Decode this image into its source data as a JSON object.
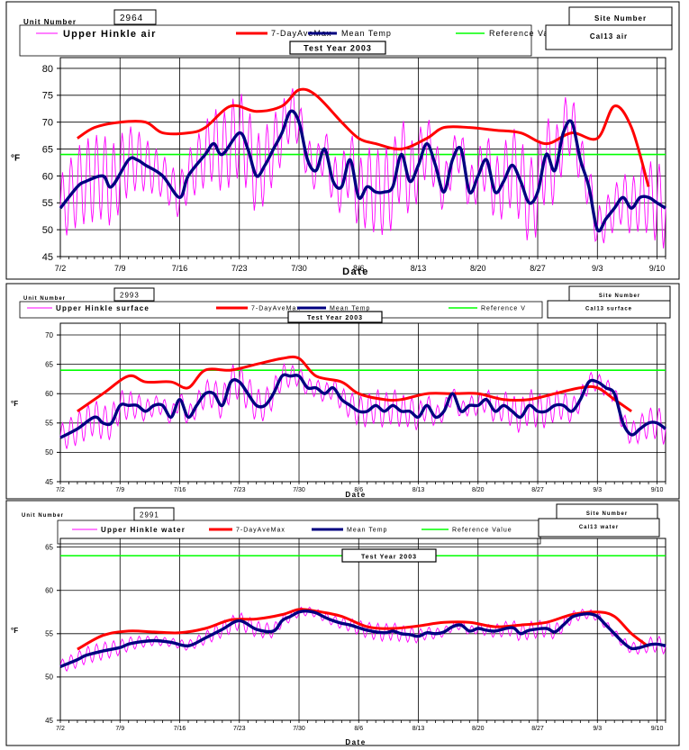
{
  "chart_data": [
    {
      "type": "line",
      "unit_number_label": "Unit Number",
      "unit_number": "2964",
      "site_number_label": "Site Number",
      "site_number": "Cal13 air",
      "title": "Test Year 2003",
      "xlabel": "Date",
      "ylabel": "°F",
      "ylim": [
        45,
        82
      ],
      "yticks": [
        45,
        50,
        55,
        60,
        65,
        70,
        75,
        80
      ],
      "xlim": [
        0,
        71
      ],
      "x_tick_labels": [
        "7/2",
        "7/9",
        "7/16",
        "7/23",
        "7/30",
        "8/6",
        "8/13",
        "8/20",
        "8/27",
        "9/3",
        "9/10"
      ],
      "grid": true,
      "legend": "top",
      "legend_labels": [
        "Upper Hinkle  air",
        "7-DayAveMax",
        "Mean Temp",
        "Reference Va"
      ],
      "colors": {
        "raw": "#ff00ff",
        "max7": "#ff0000",
        "mean": "#000080",
        "ref": "#00ff00"
      },
      "reference_value": 64,
      "raw_amplitude": 8,
      "max7": {
        "x": [
          2,
          4,
          7,
          10,
          12,
          15,
          17,
          20,
          23,
          26,
          28,
          30,
          33,
          35,
          37,
          40,
          43,
          45,
          48,
          51,
          54,
          57,
          60,
          63,
          65,
          67,
          69
        ],
        "y": [
          67,
          69,
          70,
          70,
          68,
          68,
          69,
          73,
          72,
          73,
          76,
          75,
          70,
          67,
          66,
          65,
          67,
          69,
          69,
          68.5,
          68,
          66,
          68,
          67,
          73,
          69,
          58
        ]
      },
      "mean": {
        "x": [
          0,
          2,
          3,
          5,
          6,
          8,
          9,
          10,
          12,
          14,
          15,
          17,
          18,
          19,
          21,
          22,
          23,
          24,
          25,
          26,
          27,
          28,
          29,
          30,
          31,
          32,
          33,
          34,
          35,
          36,
          37,
          38,
          39,
          40,
          41,
          42,
          43,
          44,
          45,
          46,
          47,
          48,
          49,
          50,
          51,
          52,
          53,
          54,
          55,
          56,
          57,
          58,
          59,
          60,
          61,
          62,
          63,
          64,
          65,
          66,
          67,
          68,
          69,
          70,
          71
        ],
        "y": [
          54,
          58,
          59,
          60,
          58,
          63,
          63,
          62,
          60,
          56,
          60,
          64,
          66,
          64,
          68,
          65,
          60,
          62,
          65,
          68,
          72,
          70,
          63,
          61,
          65,
          59,
          58,
          63,
          56,
          58,
          57,
          57,
          58,
          64,
          59,
          62,
          66,
          62,
          57,
          63,
          65,
          57,
          60,
          63,
          57,
          59,
          62,
          59,
          55,
          57,
          64,
          61,
          68,
          70,
          63,
          58,
          50,
          52,
          54,
          56,
          54,
          56,
          56,
          55,
          54
        ]
      }
    },
    {
      "type": "line",
      "unit_number_label": "Unit Number",
      "unit_number": "2993",
      "site_number_label": "Site Number",
      "site_number": "Cal13 surface",
      "title": "Test Year 2003",
      "xlabel": "Date",
      "ylabel": "°F",
      "ylim": [
        45,
        72
      ],
      "yticks": [
        45,
        50,
        55,
        60,
        65,
        70
      ],
      "xlim": [
        0,
        71
      ],
      "x_tick_labels": [
        "7/2",
        "7/9",
        "7/16",
        "7/23",
        "7/30",
        "8/6",
        "8/13",
        "8/20",
        "8/27",
        "9/3",
        "9/10"
      ],
      "grid": true,
      "legend": "top",
      "legend_labels": [
        "Upper Hinkle  surface",
        "7-DayAveMax",
        "Mean Temp",
        "Reference V"
      ],
      "colors": {
        "raw": "#ff00ff",
        "max7": "#ff0000",
        "mean": "#000080",
        "ref": "#00ff00"
      },
      "reference_value": 64,
      "raw_amplitude": 3,
      "max7": {
        "x": [
          2,
          5,
          8,
          10,
          13,
          15,
          17,
          20,
          23,
          26,
          28,
          30,
          33,
          35,
          38,
          40,
          43,
          46,
          49,
          52,
          55,
          58,
          61,
          63,
          65,
          67
        ],
        "y": [
          57,
          60,
          63,
          62,
          62,
          61,
          64,
          64,
          65,
          66,
          66,
          63,
          62,
          60,
          59,
          59,
          60,
          60,
          60,
          59,
          59,
          60,
          61,
          61,
          59,
          57
        ]
      },
      "mean": {
        "x": [
          0,
          2,
          4,
          5,
          6,
          7,
          8,
          9,
          10,
          11,
          12,
          13,
          14,
          15,
          16,
          17,
          18,
          19,
          20,
          21,
          22,
          23,
          24,
          25,
          26,
          27,
          28,
          29,
          30,
          31,
          32,
          33,
          34,
          35,
          36,
          37,
          38,
          39,
          40,
          41,
          42,
          43,
          44,
          45,
          46,
          47,
          48,
          49,
          50,
          51,
          52,
          53,
          54,
          55,
          56,
          57,
          58,
          59,
          60,
          61,
          62,
          63,
          64,
          65,
          66,
          67,
          68,
          69,
          70,
          71
        ],
        "y": [
          52.5,
          54,
          56,
          55,
          55,
          58,
          58,
          58,
          57,
          58,
          58,
          56,
          59,
          56,
          58,
          60,
          60,
          58,
          62,
          62,
          60,
          58,
          58,
          60,
          63,
          63,
          63,
          61,
          61,
          60,
          61,
          59,
          58,
          57,
          57,
          58,
          57,
          58,
          57,
          57,
          56,
          58,
          56,
          57,
          60,
          57,
          58,
          58,
          59,
          57,
          58,
          57,
          56,
          58,
          57,
          57,
          58,
          58,
          57,
          59,
          62,
          62,
          61,
          60,
          55,
          53,
          54,
          55,
          55,
          54
        ]
      }
    },
    {
      "type": "line",
      "unit_number_label": "Unit Number",
      "unit_number": "2991",
      "site_number_label": "Site Number",
      "site_number": "Cal13 water",
      "title": "Test Year 2003",
      "xlabel": "Date",
      "ylabel": "°F",
      "ylim": [
        45,
        66
      ],
      "yticks": [
        45,
        50,
        55,
        60,
        65
      ],
      "xlim": [
        0,
        71
      ],
      "x_tick_labels": [
        "7/2",
        "7/9",
        "7/16",
        "7/23",
        "7/30",
        "8/6",
        "8/13",
        "8/20",
        "8/27",
        "9/3",
        "9/10"
      ],
      "grid": true,
      "legend": "top",
      "legend_labels": [
        "Upper Hinkle  water",
        "7-DayAveMax",
        "Mean Temp",
        "Reference Value"
      ],
      "colors": {
        "raw": "#ff00ff",
        "max7": "#ff0000",
        "mean": "#000080",
        "ref": "#00ff00"
      },
      "reference_value": 64,
      "raw_amplitude": 1,
      "max7": {
        "x": [
          2,
          5,
          8,
          11,
          14,
          17,
          20,
          23,
          26,
          28,
          30,
          33,
          36,
          39,
          42,
          45,
          48,
          51,
          54,
          57,
          60,
          63,
          65,
          67,
          69
        ],
        "y": [
          53.2,
          54.8,
          55.3,
          55.2,
          55.1,
          55.6,
          56.6,
          56.7,
          57.2,
          57.8,
          57.6,
          57.0,
          55.8,
          55.6,
          55.9,
          56.3,
          56.3,
          55.8,
          56.0,
          56.3,
          57.2,
          57.5,
          57.0,
          55.0,
          53.5
        ]
      },
      "mean": {
        "x": [
          0,
          2,
          3,
          5,
          7,
          8,
          9,
          11,
          13,
          15,
          17,
          19,
          21,
          23,
          25,
          26,
          27,
          28,
          29,
          30,
          31,
          32,
          33,
          34,
          36,
          38,
          39,
          40,
          41,
          42,
          43,
          44,
          45,
          46,
          47,
          48,
          49,
          50,
          51,
          53,
          54,
          55,
          57,
          58,
          59,
          60,
          61,
          62,
          63,
          64,
          65,
          66,
          67,
          68,
          69,
          70,
          71
        ],
        "y": [
          51.2,
          52.0,
          52.5,
          53.0,
          53.4,
          53.8,
          54.0,
          54.2,
          54.0,
          53.6,
          54.5,
          55.5,
          56.5,
          55.5,
          55.3,
          56.5,
          57.0,
          57.5,
          57.6,
          57.4,
          56.9,
          56.5,
          56.2,
          56.0,
          55.4,
          55.1,
          55.3,
          55.0,
          54.9,
          54.7,
          55.1,
          55.0,
          55.2,
          55.8,
          56.0,
          55.3,
          55.6,
          55.4,
          55.3,
          55.7,
          55.0,
          55.4,
          55.6,
          55.2,
          56.0,
          56.9,
          57.2,
          57.3,
          57.0,
          56.0,
          55.0,
          54.0,
          53.3,
          53.4,
          53.7,
          53.8,
          53.6
        ]
      }
    }
  ]
}
